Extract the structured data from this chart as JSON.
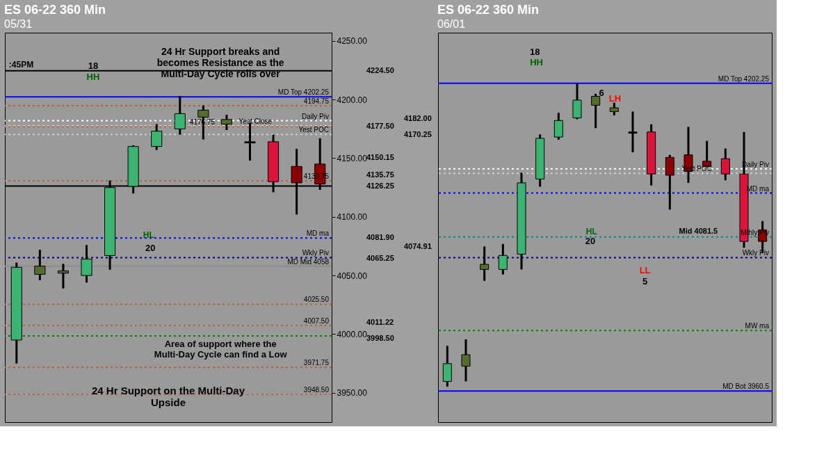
{
  "chart_data": [
    {
      "type": "candlestick",
      "title": "ES  06-22  360 Min",
      "subtitle": "05/31",
      "categories": [
        null,
        null,
        null,
        null,
        null,
        null,
        null,
        null,
        null,
        null,
        null,
        null,
        null,
        null
      ],
      "ohlc": [
        [
          3995,
          4061,
          3975,
          4057
        ],
        [
          4058,
          4072,
          4046,
          4051
        ],
        [
          4054,
          4060,
          4039,
          4052
        ],
        [
          4050,
          4076,
          4044,
          4064
        ],
        [
          4067,
          4131,
          4055,
          4125
        ],
        [
          4126,
          4161,
          4120,
          4160
        ],
        [
          4160,
          4179,
          4157,
          4173
        ],
        [
          4175,
          4203,
          4170,
          4188
        ],
        [
          4191,
          4195,
          4166,
          4185
        ],
        [
          4183,
          4187,
          4174,
          4179
        ],
        [
          4164,
          4180,
          4148,
          4163
        ],
        [
          4164,
          4170,
          4121,
          4130
        ],
        [
          4143,
          4158,
          4102,
          4129
        ],
        [
          4145,
          4167,
          4123,
          4128
        ]
      ],
      "colors": [
        "#3cb371",
        "#556b2f",
        "#556b2f",
        "#3cb371",
        "#3cb371",
        "#3cb371",
        "#3cb371",
        "#3cb371",
        "#556b2f",
        "#556b2f",
        "#000000",
        "#dc143c",
        "#8b0000",
        "#8b0000"
      ],
      "ylim": [
        3925,
        4257
      ],
      "yticks": [
        {
          "value": 3950,
          "label": "3950.00"
        },
        {
          "value": 4000,
          "label": "4000.00"
        },
        {
          "value": 4050,
          "label": "4050.00"
        },
        {
          "value": 4100,
          "label": "4100.00"
        },
        {
          "value": 4150,
          "label": "4150.00"
        },
        {
          "value": 4200,
          "label": "4200.00"
        },
        {
          "value": 4250,
          "label": "4250.00"
        }
      ],
      "ref_lines": [
        {
          "axis": "y",
          "value": 4224.5,
          "color": "#000000",
          "line_style": "solid"
        },
        {
          "axis": "y",
          "value": 4202.25,
          "label": "MD Top  4202.25",
          "color": "#0000ff",
          "line_style": "solid"
        },
        {
          "axis": "y",
          "value": 4194.75,
          "label": "4194.75",
          "color": "#b4643c",
          "line_style": "dotted"
        },
        {
          "axis": "y",
          "value": 4182.0,
          "label": "Daily Piv",
          "color": "#ffffff",
          "line_style": "dotted"
        },
        {
          "axis": "y",
          "value": 4177.5,
          "label": "Yest Close",
          "color": "#e0e0e0",
          "line_style": "dotted"
        },
        {
          "axis": "y",
          "value": 4176.75,
          "label": "4176.75",
          "color": "#b4643c",
          "line_style": "dotted"
        },
        {
          "axis": "y",
          "value": 4170.25,
          "label": "Yest POC",
          "color": "#d0d0d0",
          "line_style": "dotted"
        },
        {
          "axis": "y",
          "value": 4130.75,
          "label": "4130.75",
          "color": "#b4643c",
          "line_style": "dotted"
        },
        {
          "axis": "y",
          "value": 4126.25,
          "color": "#000000",
          "line_style": "solid"
        },
        {
          "axis": "y",
          "value": 4081.9,
          "label": "MD ma",
          "color": "#0000ff",
          "line_style": "dotted"
        },
        {
          "axis": "y",
          "value": 4065.25,
          "label": "Wkly Piv",
          "color": "#000080",
          "line_style": "dotted"
        },
        {
          "axis": "y",
          "value": 4058,
          "label": "MD Mid  4058",
          "color": "#8c8c8c",
          "line_style": "solid"
        },
        {
          "axis": "y",
          "value": 4025.5,
          "label": "4025.50",
          "color": "#b4643c",
          "line_style": "dotted"
        },
        {
          "axis": "y",
          "value": 4007.5,
          "label": "4007.50",
          "color": "#b4643c",
          "line_style": "dotted"
        },
        {
          "axis": "y",
          "value": 3998.5,
          "color": "#008000",
          "line_style": "dotted"
        },
        {
          "axis": "y",
          "value": 3971.75,
          "label": "3971.75",
          "color": "#b4643c",
          "line_style": "dotted"
        },
        {
          "axis": "y",
          "value": 3948.5,
          "label": "3948.50",
          "color": "#b4643c",
          "line_style": "dotted"
        }
      ],
      "annotations": [
        ":45PM",
        "18",
        "HH",
        "24 Hr Support breaks and becomes Resistance as the Multi-Day Cycle rolls over",
        "HL",
        "20",
        "Area of support where the Multi-Day Cycle can find a Low",
        "24 Hr Support on the Multi-Day Upside",
        "4224.50",
        "4182.00",
        "4177.50",
        "4170.25",
        "4150.15",
        "4135.75",
        "4126.25",
        "4081.90",
        "4074.91",
        "4065.25",
        "4011.22",
        "3998.50"
      ]
    },
    {
      "type": "candlestick",
      "title": "ES  06-22  360 Min",
      "subtitle": "06/01",
      "categories": [
        null,
        null,
        null,
        null,
        null,
        null,
        null,
        null,
        null,
        null,
        null,
        null,
        null,
        null,
        null,
        null,
        null,
        null
      ],
      "ohlc": [
        [
          3968,
          3996,
          3964,
          3982
        ],
        [
          3989,
          4001,
          3968,
          3980
        ],
        [
          4060,
          4074,
          4047,
          4056
        ],
        [
          4056,
          4076,
          4052,
          4067
        ],
        [
          4068,
          4132,
          4056,
          4124
        ],
        [
          4127,
          4162,
          4121,
          4159
        ],
        [
          4160,
          4179,
          4158,
          4173
        ],
        [
          4175,
          4202,
          4174,
          4189
        ],
        [
          4192,
          4194,
          4167,
          4185
        ],
        [
          4183,
          4187,
          4177,
          4180
        ],
        [
          4164,
          4180,
          4148,
          4163
        ],
        [
          4164,
          4170,
          4122,
          4131
        ],
        [
          4144,
          4146,
          4103,
          4130
        ],
        [
          4146,
          4168,
          4124,
          4133
        ],
        [
          4137,
          4157,
          4137,
          4141
        ],
        [
          4143,
          4151,
          4126,
          4131
        ],
        [
          4131,
          4164,
          4073,
          4078
        ],
        [
          4078,
          4094,
          4069,
          4087
        ]
      ],
      "colors": [
        "#3cb371",
        "#556b2f",
        "#556b2f",
        "#3cb371",
        "#3cb371",
        "#3cb371",
        "#3cb371",
        "#3cb371",
        "#556b2f",
        "#556b2f",
        "#000000",
        "#dc143c",
        "#8b0000",
        "#8b0000",
        "#8b0000",
        "#dc143c",
        "#dc143c",
        "#8b0000"
      ],
      "ylim": [
        3936,
        4242
      ],
      "tick_labels": false,
      "ref_lines": [
        {
          "axis": "y",
          "value": 4202.25,
          "label": "MD Top  4202.25",
          "color": "#0000ff",
          "line_style": "solid"
        },
        {
          "axis": "y",
          "value": 4135,
          "label": "Daily Piv",
          "color": "#ffffff",
          "line_style": "dotted"
        },
        {
          "axis": "y",
          "value": 4131.5,
          "label": "Yest POC",
          "color": "#d0d0d0",
          "line_style": "dotted"
        },
        {
          "axis": "y",
          "value": 4116,
          "label": "MD ma",
          "color": "#0000ff",
          "line_style": "dotted"
        },
        {
          "axis": "y",
          "value": 4081.5,
          "label": "Mthly Piv",
          "color": "#008b8b",
          "line_style": "dotted"
        },
        {
          "axis": "y",
          "value": 4065.25,
          "label": "Wkly Piv",
          "color": "#000080",
          "line_style": "dotted"
        },
        {
          "axis": "y",
          "value": 4008,
          "label": "MW ma",
          "color": "#008000",
          "line_style": "dotted"
        },
        {
          "axis": "y",
          "value": 3960.5,
          "label": "MD Bot  3960.5",
          "color": "#0000ff",
          "line_style": "solid"
        }
      ],
      "annotations": [
        "18",
        "HH",
        "6",
        "LH",
        "HL",
        "20",
        "LL",
        "5",
        "Mid  4081.5"
      ]
    }
  ]
}
